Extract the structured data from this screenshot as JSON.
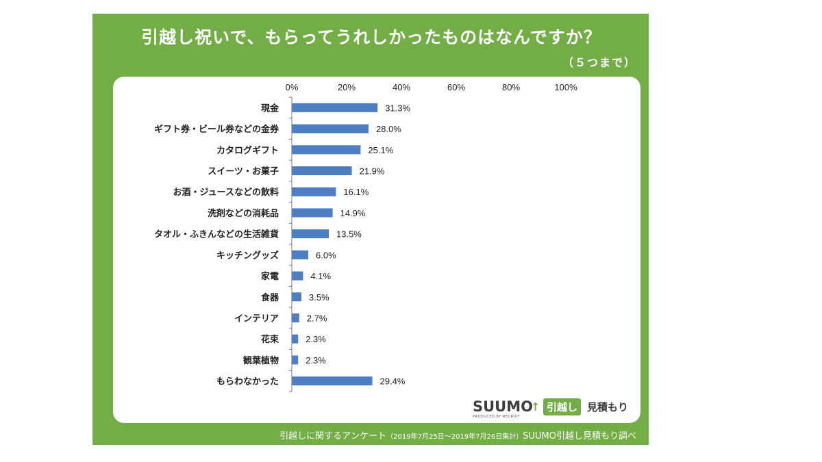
{
  "title": "引越し祝いで、もらってうれしかったものはなんですか？",
  "subtitle": "（５つまで）",
  "footer": {
    "main": "引越しに関するアンケート",
    "period": "（2019年7月25日～2019年7月26日集計）",
    "source": "SUUMO引越し見積もり調べ"
  },
  "logo": {
    "word": "SUUMO",
    "badge": "引越し",
    "sub": "見積もり",
    "produced_by": "PRODUCED BY RECRUIT"
  },
  "colors": {
    "panel": "#72ad46",
    "bar": "#4e7ec1"
  },
  "chart_data": {
    "type": "bar",
    "orientation": "horizontal",
    "categories": [
      "現金",
      "ギフト券・ビール券などの金券",
      "カタログギフト",
      "スイーツ・お菓子",
      "お酒・ジュースなどの飲料",
      "洗剤などの消耗品",
      "タオル・ふきんなどの生活雑貨",
      "キッチングッズ",
      "家電",
      "食器",
      "インテリア",
      "花束",
      "観葉植物",
      "もらわなかった"
    ],
    "values": [
      31.3,
      28.0,
      25.1,
      21.9,
      16.1,
      14.9,
      13.5,
      6.0,
      4.1,
      3.5,
      2.7,
      2.3,
      2.3,
      29.4
    ],
    "value_labels": [
      "31.3%",
      "28.0%",
      "25.1%",
      "21.9%",
      "16.1%",
      "14.9%",
      "13.5%",
      "6.0%",
      "4.1%",
      "3.5%",
      "2.7%",
      "2.3%",
      "2.3%",
      "29.4%"
    ],
    "xlim": [
      0,
      100
    ],
    "ticks": [
      0,
      20,
      40,
      60,
      80,
      100
    ],
    "tick_labels": [
      "0%",
      "20%",
      "40%",
      "60%",
      "80%",
      "100%"
    ],
    "axis_position": "top",
    "grid": false,
    "legend": "none"
  }
}
